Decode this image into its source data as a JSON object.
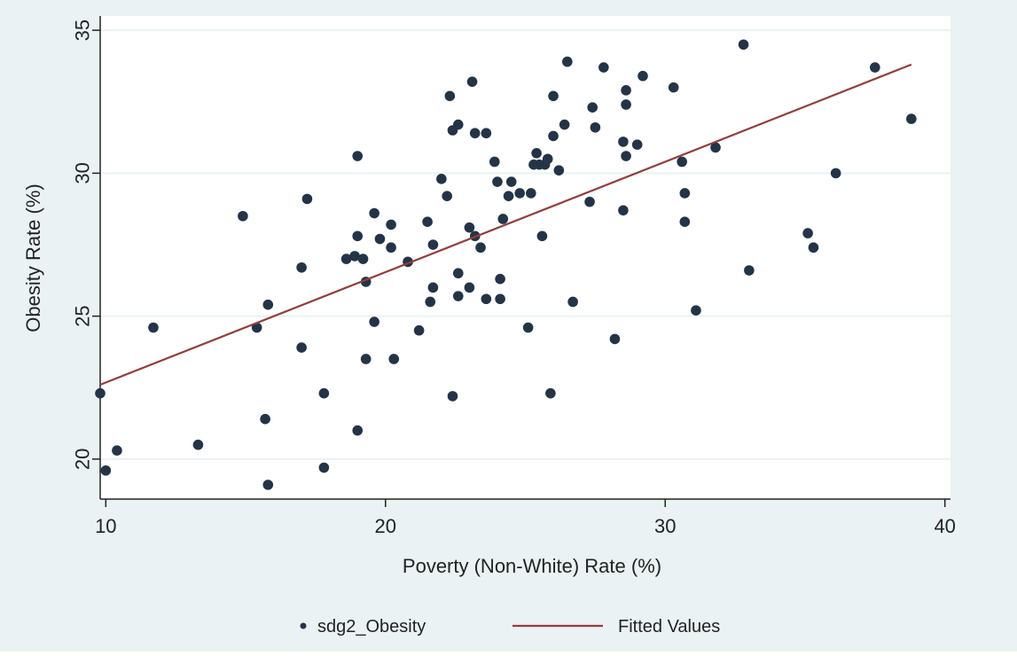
{
  "chart_data": {
    "type": "scatter",
    "title": "",
    "xlabel": "Poverty (Non-White) Rate (%)",
    "ylabel": "Obesity Rate (%)",
    "xlim": [
      9.8,
      40.2
    ],
    "ylim": [
      18.6,
      35.5
    ],
    "xticks": [
      10,
      20,
      30,
      40
    ],
    "yticks": [
      20,
      25,
      30,
      35
    ],
    "grid": "horizontal",
    "legend_position": "bottom",
    "colors": {
      "background": "#eaf2f3",
      "plot_bg": "#ffffff",
      "marker": "#243447",
      "fit_line": "#943c3c",
      "gridline": "#eaf2f3"
    },
    "series": [
      {
        "name": "sdg2_Obesity",
        "kind": "scatter",
        "points": [
          [
            9.8,
            22.3
          ],
          [
            10.0,
            19.6
          ],
          [
            10.4,
            20.3
          ],
          [
            11.7,
            24.6
          ],
          [
            13.3,
            20.5
          ],
          [
            14.9,
            28.5
          ],
          [
            15.4,
            24.6
          ],
          [
            15.7,
            21.4
          ],
          [
            15.8,
            25.4
          ],
          [
            15.8,
            19.1
          ],
          [
            17.0,
            26.7
          ],
          [
            17.0,
            23.9
          ],
          [
            17.2,
            29.1
          ],
          [
            17.8,
            22.3
          ],
          [
            17.8,
            19.7
          ],
          [
            18.6,
            27.0
          ],
          [
            18.9,
            27.1
          ],
          [
            19.0,
            27.8
          ],
          [
            19.0,
            30.6
          ],
          [
            19.0,
            21.0
          ],
          [
            19.2,
            27.0
          ],
          [
            19.3,
            26.2
          ],
          [
            19.3,
            23.5
          ],
          [
            19.6,
            24.8
          ],
          [
            19.6,
            28.6
          ],
          [
            19.8,
            27.7
          ],
          [
            20.2,
            27.4
          ],
          [
            20.2,
            28.2
          ],
          [
            20.3,
            23.5
          ],
          [
            20.8,
            26.9
          ],
          [
            21.2,
            24.5
          ],
          [
            21.5,
            28.3
          ],
          [
            21.6,
            25.5
          ],
          [
            21.7,
            26.0
          ],
          [
            21.7,
            27.5
          ],
          [
            22.0,
            29.8
          ],
          [
            22.2,
            29.2
          ],
          [
            22.3,
            32.7
          ],
          [
            22.4,
            31.5
          ],
          [
            22.4,
            22.2
          ],
          [
            22.6,
            31.7
          ],
          [
            22.6,
            26.5
          ],
          [
            22.6,
            25.7
          ],
          [
            23.0,
            28.1
          ],
          [
            23.0,
            26.0
          ],
          [
            23.1,
            33.2
          ],
          [
            23.2,
            31.4
          ],
          [
            23.2,
            27.8
          ],
          [
            23.4,
            27.4
          ],
          [
            23.6,
            31.4
          ],
          [
            23.6,
            25.6
          ],
          [
            23.9,
            30.4
          ],
          [
            24.0,
            29.7
          ],
          [
            24.1,
            26.3
          ],
          [
            24.1,
            25.6
          ],
          [
            24.2,
            28.4
          ],
          [
            24.4,
            29.2
          ],
          [
            24.5,
            29.7
          ],
          [
            24.8,
            29.3
          ],
          [
            25.1,
            24.6
          ],
          [
            25.2,
            29.3
          ],
          [
            25.3,
            30.3
          ],
          [
            25.4,
            30.7
          ],
          [
            25.5,
            30.3
          ],
          [
            25.6,
            27.8
          ],
          [
            25.7,
            30.3
          ],
          [
            25.8,
            30.5
          ],
          [
            25.9,
            22.3
          ],
          [
            26.0,
            31.3
          ],
          [
            26.0,
            32.7
          ],
          [
            26.2,
            30.1
          ],
          [
            26.4,
            31.7
          ],
          [
            26.5,
            33.9
          ],
          [
            26.7,
            25.5
          ],
          [
            27.3,
            29.0
          ],
          [
            27.4,
            32.3
          ],
          [
            27.5,
            31.6
          ],
          [
            27.8,
            33.7
          ],
          [
            28.2,
            24.2
          ],
          [
            28.5,
            31.1
          ],
          [
            28.5,
            28.7
          ],
          [
            28.6,
            32.4
          ],
          [
            28.6,
            32.9
          ],
          [
            28.6,
            30.6
          ],
          [
            29.0,
            31.0
          ],
          [
            29.2,
            33.4
          ],
          [
            30.3,
            33.0
          ],
          [
            30.6,
            30.4
          ],
          [
            30.7,
            29.3
          ],
          [
            30.7,
            28.3
          ],
          [
            31.1,
            25.2
          ],
          [
            31.8,
            30.9
          ],
          [
            32.8,
            34.5
          ],
          [
            33.0,
            26.6
          ],
          [
            35.1,
            27.9
          ],
          [
            35.3,
            27.4
          ],
          [
            36.1,
            30.0
          ],
          [
            37.5,
            33.7
          ],
          [
            38.8,
            31.9
          ]
        ]
      },
      {
        "name": "Fitted Values",
        "kind": "line",
        "points": [
          [
            9.8,
            22.6
          ],
          [
            38.8,
            33.8
          ]
        ]
      }
    ]
  }
}
